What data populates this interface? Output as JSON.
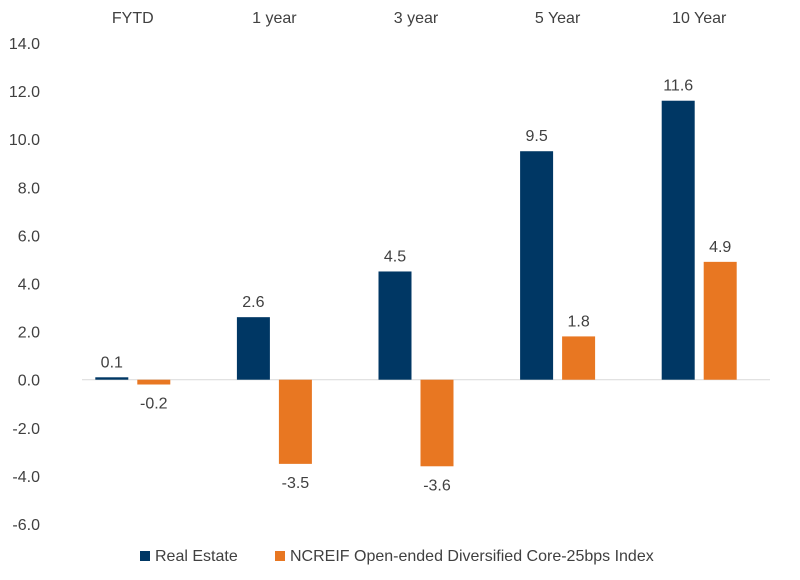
{
  "chart_data": {
    "type": "bar",
    "title": "",
    "xlabel": "",
    "ylabel": "",
    "categories": [
      "FYTD",
      "1 year",
      "3 year",
      "5 Year",
      "10 Year"
    ],
    "series": [
      {
        "name": "Real Estate",
        "color": "#003764",
        "values": [
          0.1,
          2.6,
          4.5,
          9.5,
          11.6
        ]
      },
      {
        "name": "NCREIF Open-ended Diversified Core-25bps Index",
        "color": "#E87722",
        "values": [
          -0.2,
          -3.5,
          -3.6,
          1.8,
          4.9
        ]
      }
    ],
    "ylim": [
      -6.0,
      14.0
    ],
    "yticks": [
      "14.0",
      "12.0",
      "10.0",
      "8.0",
      "6.0",
      "4.0",
      "2.0",
      "0.0",
      "-2.0",
      "-4.0",
      "-6.0"
    ],
    "data_labels": [
      [
        "0.1",
        "2.6",
        "4.5",
        "9.5",
        "11.6"
      ],
      [
        "-0.2",
        "-3.5",
        "-3.6",
        "1.8",
        "4.9"
      ]
    ],
    "category_axis_position": "top",
    "legend_position": "bottom",
    "grid": false
  }
}
